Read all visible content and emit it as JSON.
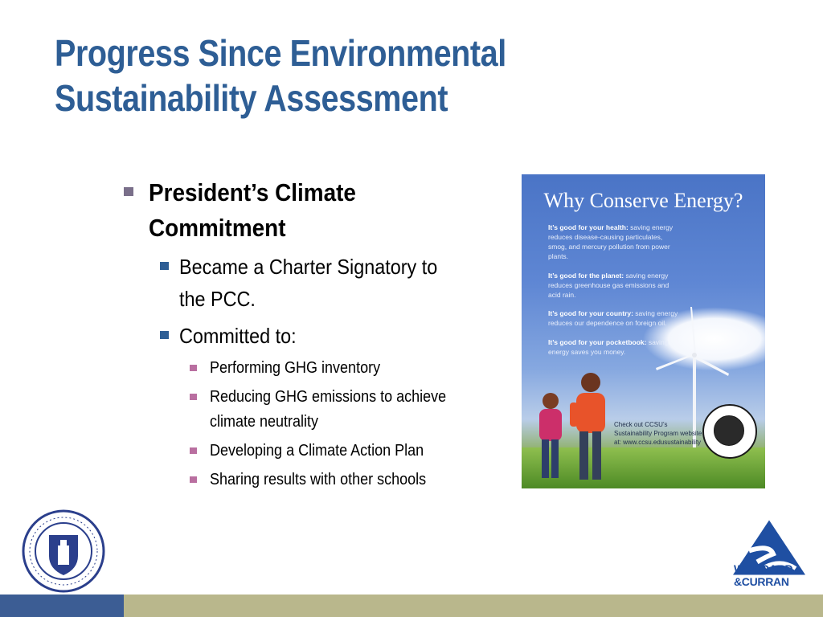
{
  "slide": {
    "title_line1": "Progress Since Environmental",
    "title_line2": "Sustainability Assessment"
  },
  "bullets": {
    "l1": "President’s Climate Commitment",
    "l2a": "Became a Charter Signatory to the PCC.",
    "l2b": "Committed to:",
    "l3": [
      "Performing GHG inventory",
      "Reducing GHG emissions to achieve climate neutrality",
      "Developing a Climate Action Plan",
      "Sharing results with other schools"
    ]
  },
  "poster": {
    "title": "Why Conserve Energy?",
    "p1_bold": "It’s good for your health:",
    "p1_text": " saving energy reduces disease-causing particulates, smog, and mercury pollution from power plants.",
    "p2_bold": "It’s good for the planet:",
    "p2_text": " saving energy reduces greenhouse gas emissions and acid rain.",
    "p3_bold": "It’s good for your country:",
    "p3_text": " saving energy reduces our dependence on foreign oil.",
    "p4_bold": "It’s good for your pocketbook:",
    "p4_text": " saving energy saves you money.",
    "note": "Check out CCSU’s Sustainability Program website at: www.ccsu.edusustainability"
  },
  "logos": {
    "ccsu_text": "CENTRAL • CONNECTICUT • STATE • UNIVERSITY • 1849",
    "wc_line1": "WOODARD",
    "wc_line2": "&CURRAN"
  },
  "colors": {
    "title": "#2e5e95",
    "footer_left": "#3c5d94",
    "footer_right": "#b9b78c",
    "bullet_level2": "#2e5e95",
    "bullet_level3": "#b96fa0"
  }
}
